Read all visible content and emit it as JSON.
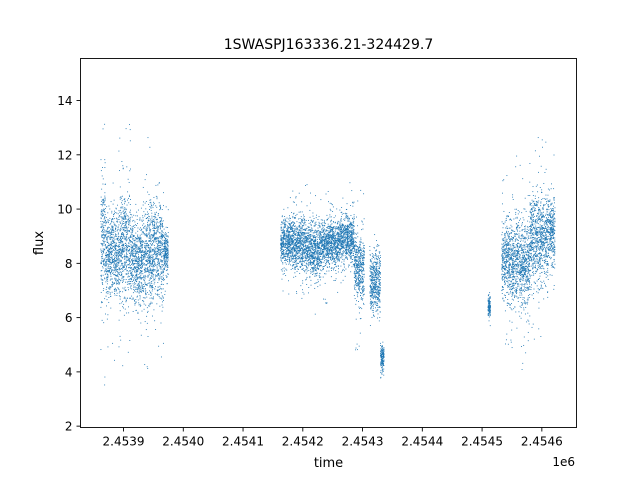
{
  "chart_data": {
    "type": "scatter",
    "title": "1SWASPJ163336.21-324429.7",
    "xlabel": "time",
    "ylabel": "flux",
    "x_offset_label": "1e6",
    "xlim": [
      2453828,
      2454658
    ],
    "ylim": [
      1.95,
      15.55
    ],
    "x_ticks": [
      2453900,
      2454000,
      2454100,
      2454200,
      2454300,
      2454400,
      2454500,
      2454600
    ],
    "x_tick_labels": [
      "2.4539",
      "2.4540",
      "2.4541",
      "2.4542",
      "2.4543",
      "2.4544",
      "2.4545",
      "2.4546"
    ],
    "y_ticks": [
      2,
      4,
      6,
      8,
      10,
      12,
      14
    ],
    "y_tick_labels": [
      "2",
      "4",
      "6",
      "8",
      "10",
      "12",
      "14"
    ],
    "grid": false,
    "legend": "none",
    "marker_color": "#1f77b4",
    "series": [
      {
        "points_summary": [
          {
            "x_start": 2453862,
            "x_end": 2453870,
            "y_center": 8.9,
            "y_spread": 2.5
          },
          {
            "x_start": 2453870,
            "x_end": 2453884,
            "y_center": 8.3,
            "y_spread": 1.6
          },
          {
            "x_start": 2453884,
            "x_end": 2453894,
            "y_center": 8.4,
            "y_spread": 2.0
          },
          {
            "x_start": 2453894,
            "x_end": 2453912,
            "y_center": 8.6,
            "y_spread": 2.2
          },
          {
            "x_start": 2453912,
            "x_end": 2453932,
            "y_center": 8.1,
            "y_spread": 1.7
          },
          {
            "x_start": 2453932,
            "x_end": 2453948,
            "y_center": 8.3,
            "y_spread": 2.0
          },
          {
            "x_start": 2453948,
            "x_end": 2453967,
            "y_center": 8.5,
            "y_spread": 2.0
          },
          {
            "x_start": 2453967,
            "x_end": 2453975,
            "y_center": 8.4,
            "y_spread": 0.8
          },
          {
            "x_start": 2454163,
            "x_end": 2454182,
            "y_center": 8.8,
            "y_spread": 0.9
          },
          {
            "x_start": 2454182,
            "x_end": 2454205,
            "y_center": 8.7,
            "y_spread": 1.0
          },
          {
            "x_start": 2454205,
            "x_end": 2454232,
            "y_center": 8.5,
            "y_spread": 1.1
          },
          {
            "x_start": 2454232,
            "x_end": 2454262,
            "y_center": 8.7,
            "y_spread": 1.0
          },
          {
            "x_start": 2454262,
            "x_end": 2454286,
            "y_center": 8.9,
            "y_spread": 1.0
          },
          {
            "x_start": 2454286,
            "x_end": 2454303,
            "y_center": 7.8,
            "y_spread": 1.4
          },
          {
            "x_start": 2454312,
            "x_end": 2454330,
            "y_center": 7.3,
            "y_spread": 1.2
          },
          {
            "x_start": 2454330,
            "x_end": 2454336,
            "y_center": 4.5,
            "y_spread": 0.5
          },
          {
            "x_start": 2454510,
            "x_end": 2454514,
            "y_center": 6.4,
            "y_spread": 0.4
          },
          {
            "x_start": 2454533,
            "x_end": 2454548,
            "y_center": 8.2,
            "y_spread": 1.5
          },
          {
            "x_start": 2454548,
            "x_end": 2454580,
            "y_center": 8.0,
            "y_spread": 1.8
          },
          {
            "x_start": 2454580,
            "x_end": 2454610,
            "y_center": 8.9,
            "y_spread": 1.8
          },
          {
            "x_start": 2454610,
            "x_end": 2454622,
            "y_center": 9.2,
            "y_spread": 1.3
          }
        ]
      }
    ]
  }
}
